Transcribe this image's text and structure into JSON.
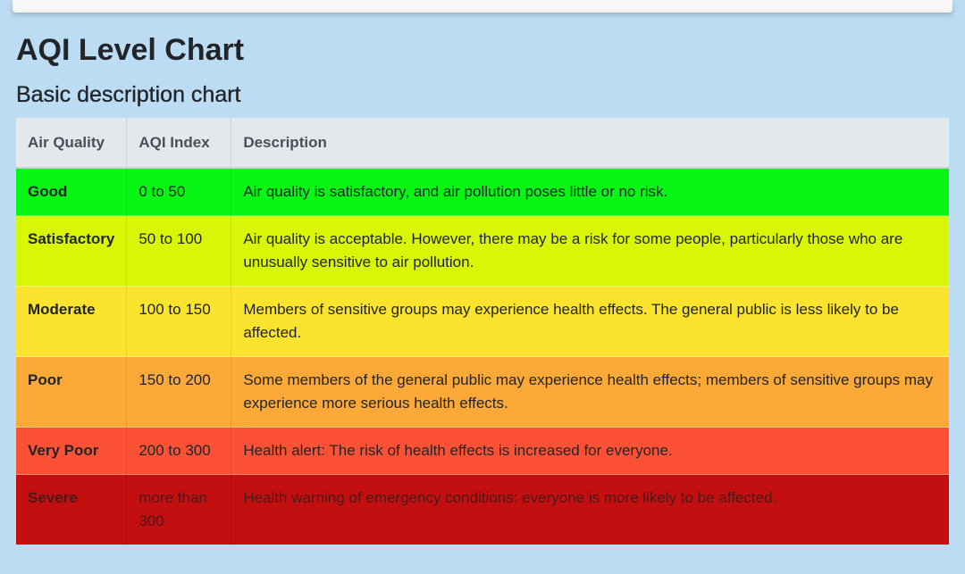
{
  "page": {
    "title": "AQI Level Chart",
    "subtitle": "Basic description chart"
  },
  "table": {
    "headers": [
      "Air Quality",
      "AQI Index",
      "Description"
    ],
    "rows": [
      {
        "quality": "Good",
        "index": "0 to 50",
        "description": "Air quality is satisfactory, and air pollution poses little or no risk.",
        "color": "#07f613",
        "text_color": "#212529"
      },
      {
        "quality": "Satisfactory",
        "index": "50 to 100",
        "description": "Air quality is acceptable. However, there may be a risk for some people, particularly those who are unusually sensitive to air pollution.",
        "color": "#d8f605",
        "text_color": "#212529"
      },
      {
        "quality": "Moderate",
        "index": "100 to 150",
        "description": "Members of sensitive groups may experience health effects. The general public is less likely to be affected.",
        "color": "#fce32d",
        "text_color": "#212529"
      },
      {
        "quality": "Poor",
        "index": "150 to 200",
        "description": "Some members of the general public may experience health effects; members of sensitive groups may experience more serious health effects.",
        "color": "#fca937",
        "text_color": "#212529"
      },
      {
        "quality": "Very Poor",
        "index": "200 to 300",
        "description": "Health alert: The risk of health effects is increased for everyone.",
        "color": "#fc5135",
        "text_color": "#212529"
      },
      {
        "quality": "Severe",
        "index": "more than 300",
        "description": "Health warning of emergency conditions: everyone is more likely to be affected.",
        "color": "#c40f10",
        "text_color": "#4a1a1a"
      }
    ]
  }
}
